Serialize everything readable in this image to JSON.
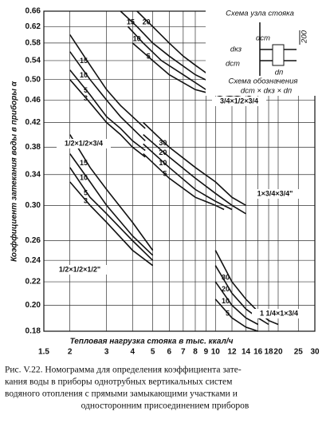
{
  "chart_data": {
    "type": "line",
    "y_label": "Коэффициент затекания воды в приборы α",
    "x_label": "Тепловая нагрузка стояка в тыс. ккал/ч",
    "xscale": "log",
    "yscale": "log",
    "grid": true,
    "color": "#111111",
    "xlim": [
      1.5,
      30
    ],
    "ylim": [
      0.18,
      0.66
    ],
    "xticks": [
      1.5,
      2,
      3,
      4,
      5,
      6,
      7,
      8,
      9,
      10,
      12,
      14,
      16,
      18,
      20,
      25,
      30
    ],
    "yticks": [
      {
        "value": 0.18,
        "label": "0.18"
      },
      {
        "value": 0.2,
        "label": "0.20"
      },
      {
        "value": 0.22,
        "label": "0.22"
      },
      {
        "value": 0.24,
        "label": "0.24"
      },
      {
        "value": 0.26,
        "label": "0.26"
      },
      {
        "value": 0.3,
        "label": "0.30"
      },
      {
        "value": 0.34,
        "label": "0.34"
      },
      {
        "value": 0.38,
        "label": "0.38"
      },
      {
        "value": 0.42,
        "label": "0.42"
      },
      {
        "value": 0.46,
        "label": "0.46"
      },
      {
        "value": 0.5,
        "label": "0.50"
      },
      {
        "value": 0.54,
        "label": "0.54"
      },
      {
        "value": 0.58,
        "label": "0.58"
      },
      {
        "value": 0.62,
        "label": "0.62"
      },
      {
        "value": 0.66,
        "label": "0.66"
      }
    ],
    "series": [
      {
        "name": "20",
        "x": [
          4.2,
          5,
          6,
          7,
          8,
          10,
          12,
          14,
          16
        ],
        "values": [
          0.66,
          0.62,
          0.58,
          0.55,
          0.53,
          0.5,
          0.48,
          0.47,
          0.46
        ]
      },
      {
        "name": "15",
        "x": [
          3.5,
          4.2,
          5,
          6,
          8,
          10,
          12,
          15
        ],
        "values": [
          0.66,
          0.62,
          0.58,
          0.55,
          0.51,
          0.49,
          0.47,
          0.46
        ]
      },
      {
        "name": "10",
        "x": [
          3.8,
          4.5,
          5.5,
          7,
          9,
          11,
          14
        ],
        "values": [
          0.62,
          0.58,
          0.54,
          0.51,
          0.48,
          0.47,
          0.46
        ]
      },
      {
        "name": "5",
        "x": [
          4,
          5,
          6,
          8,
          10,
          12,
          14
        ],
        "values": [
          0.58,
          0.54,
          0.51,
          0.48,
          0.47,
          0.46,
          0.455
        ]
      },
      {
        "name": "15",
        "x": [
          2,
          2.5,
          3,
          3.5,
          4,
          4.6
        ],
        "values": [
          0.6,
          0.53,
          0.48,
          0.45,
          0.43,
          0.41
        ]
      },
      {
        "name": "10",
        "x": [
          2,
          2.5,
          3,
          3.5,
          4,
          4.6
        ],
        "values": [
          0.56,
          0.5,
          0.46,
          0.43,
          0.41,
          0.39
        ]
      },
      {
        "name": "5",
        "x": [
          2,
          2.5,
          3,
          3.5,
          4,
          4.6
        ],
        "values": [
          0.52,
          0.47,
          0.43,
          0.41,
          0.39,
          0.375
        ]
      },
      {
        "name": "3",
        "x": [
          2,
          2.5,
          3,
          3.5,
          4,
          4.6
        ],
        "values": [
          0.5,
          0.455,
          0.42,
          0.4,
          0.38,
          0.365
        ]
      },
      {
        "name": "30",
        "x": [
          4.5,
          6,
          8,
          10,
          12,
          14
        ],
        "values": [
          0.42,
          0.38,
          0.35,
          0.33,
          0.31,
          0.3
        ]
      },
      {
        "name": "20",
        "x": [
          4.5,
          6,
          8,
          10,
          12,
          14
        ],
        "values": [
          0.4,
          0.365,
          0.335,
          0.315,
          0.3,
          0.29
        ]
      },
      {
        "name": "10",
        "x": [
          4.5,
          6,
          8,
          10,
          12
        ],
        "values": [
          0.385,
          0.35,
          0.32,
          0.305,
          0.295
        ]
      },
      {
        "name": "5",
        "x": [
          4.5,
          6,
          8,
          10,
          11
        ],
        "values": [
          0.37,
          0.335,
          0.31,
          0.3,
          0.295
        ]
      },
      {
        "name": "15",
        "x": [
          2,
          2.5,
          3,
          4,
          5
        ],
        "values": [
          0.4,
          0.35,
          0.32,
          0.28,
          0.25
        ]
      },
      {
        "name": "10",
        "x": [
          2,
          2.5,
          3,
          4,
          5
        ],
        "values": [
          0.37,
          0.33,
          0.3,
          0.265,
          0.245
        ]
      },
      {
        "name": "5",
        "x": [
          2,
          2.5,
          3,
          4,
          5
        ],
        "values": [
          0.35,
          0.31,
          0.29,
          0.26,
          0.24
        ]
      },
      {
        "name": "3",
        "x": [
          2,
          2.5,
          3,
          4,
          5
        ],
        "values": [
          0.33,
          0.3,
          0.28,
          0.25,
          0.235
        ]
      },
      {
        "name": "30",
        "x": [
          10,
          12,
          14,
          16,
          18,
          20
        ],
        "values": [
          0.25,
          0.22,
          0.205,
          0.195,
          0.188,
          0.185
        ]
      },
      {
        "name": "20",
        "x": [
          10,
          12,
          14,
          16,
          18
        ],
        "values": [
          0.235,
          0.21,
          0.197,
          0.19,
          0.185
        ]
      },
      {
        "name": "10",
        "x": [
          10,
          12,
          14,
          16
        ],
        "values": [
          0.22,
          0.2,
          0.19,
          0.185
        ]
      },
      {
        "name": "5",
        "x": [
          10,
          12,
          14,
          16
        ],
        "values": [
          0.205,
          0.19,
          0.183,
          0.18
        ]
      }
    ],
    "annotations": [
      "3/4×1/2×3/4",
      "1/2×1/2×3/4",
      "1×3/4×3/4\"",
      "1/2×1/2×1/2\"",
      "1 1/4×1×3/4"
    ]
  },
  "inset": {
    "title": "Схема узла стояка",
    "d_st_top": "dст",
    "dim": "200",
    "d_kz": "dкз",
    "d_st": "dст",
    "d_p": "dп",
    "scheme_title": "Схема обозначения",
    "scheme": "dст × dкз × dп"
  },
  "caption": [
    "Рис. V.22. Номограмма для определения коэффициента зате-",
    "кания воды в приборы однотрубных вертикальных систем",
    "водяного отопления с прямыми замыкающими участками и",
    "односторонним присоединением приборов"
  ]
}
